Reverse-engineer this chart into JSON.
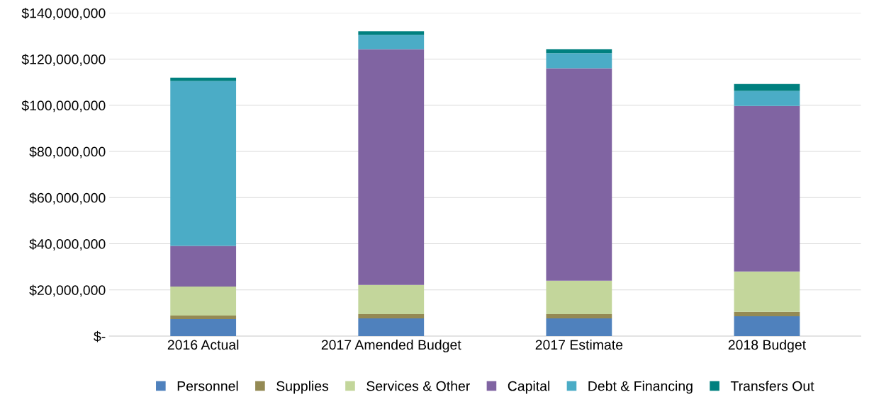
{
  "chart_data": {
    "type": "bar",
    "stacked": true,
    "categories": [
      "2016 Actual",
      "2017 Amended Budget",
      "2017 Estimate",
      "2018 Budget"
    ],
    "series": [
      {
        "name": "Personnel",
        "color": "#4f81bd",
        "values": [
          7400000,
          7700000,
          7700000,
          8600000
        ]
      },
      {
        "name": "Supplies",
        "color": "#948a54",
        "values": [
          1500000,
          1800000,
          1800000,
          1900000
        ]
      },
      {
        "name": "Services & Other",
        "color": "#c3d69b",
        "values": [
          12600000,
          12700000,
          14500000,
          17500000
        ]
      },
      {
        "name": "Capital",
        "color": "#8064a2",
        "values": [
          17600000,
          102100000,
          92000000,
          71700000
        ]
      },
      {
        "name": "Debt & Financing",
        "color": "#4bacc6",
        "values": [
          71400000,
          6200000,
          6500000,
          6500000
        ]
      },
      {
        "name": "Transfers Out",
        "color": "#00807f",
        "values": [
          1500000,
          1500000,
          1800000,
          3000000
        ]
      }
    ],
    "ylim": [
      0,
      140000000
    ],
    "yticks": [
      {
        "value": 0,
        "label": "$-"
      },
      {
        "value": 20000000,
        "label": "$20,000,000"
      },
      {
        "value": 40000000,
        "label": "$40,000,000"
      },
      {
        "value": 60000000,
        "label": "$60,000,000"
      },
      {
        "value": 80000000,
        "label": "$80,000,000"
      },
      {
        "value": 100000000,
        "label": "$100,000,000"
      },
      {
        "value": 120000000,
        "label": "$120,000,000"
      },
      {
        "value": 140000000,
        "label": "$140,000,000"
      }
    ],
    "grid": "y",
    "legend": "bottom"
  }
}
